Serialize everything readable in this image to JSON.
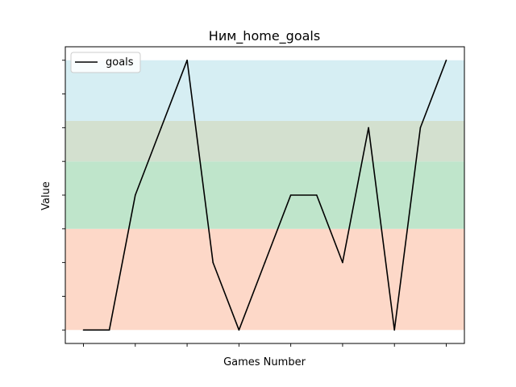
{
  "chart_data": {
    "type": "line",
    "title": "Ним_home_goals",
    "xlabel": "Games Number",
    "ylabel": "Value",
    "x": [
      0,
      1,
      2,
      3,
      4,
      5,
      6,
      7,
      8,
      9,
      10,
      11,
      12,
      13,
      14
    ],
    "series": [
      {
        "name": "goals",
        "values": [
          0,
          0,
          4,
          6,
          8,
          2,
          0,
          2,
          4,
          4,
          2,
          6,
          0,
          6,
          8
        ],
        "color": "#000000"
      }
    ],
    "xlim": [
      -0.7,
      14.7
    ],
    "ylim": [
      -0.4,
      8.4
    ],
    "xticks": [
      0,
      2,
      4,
      6,
      8,
      10,
      12,
      14
    ],
    "yticks": [
      0,
      1,
      2,
      3,
      4,
      5,
      6,
      7,
      8
    ],
    "bands": [
      {
        "from": 0,
        "to": 3,
        "color": "#fdd8c8"
      },
      {
        "from": 3,
        "to": 5,
        "color": "#bfe5cb"
      },
      {
        "from": 5,
        "to": 6.2,
        "color": "#d3e0cf"
      },
      {
        "from": 6.2,
        "to": 8,
        "color": "#d6eef3"
      }
    ],
    "legend": "top-left",
    "grid": false
  }
}
